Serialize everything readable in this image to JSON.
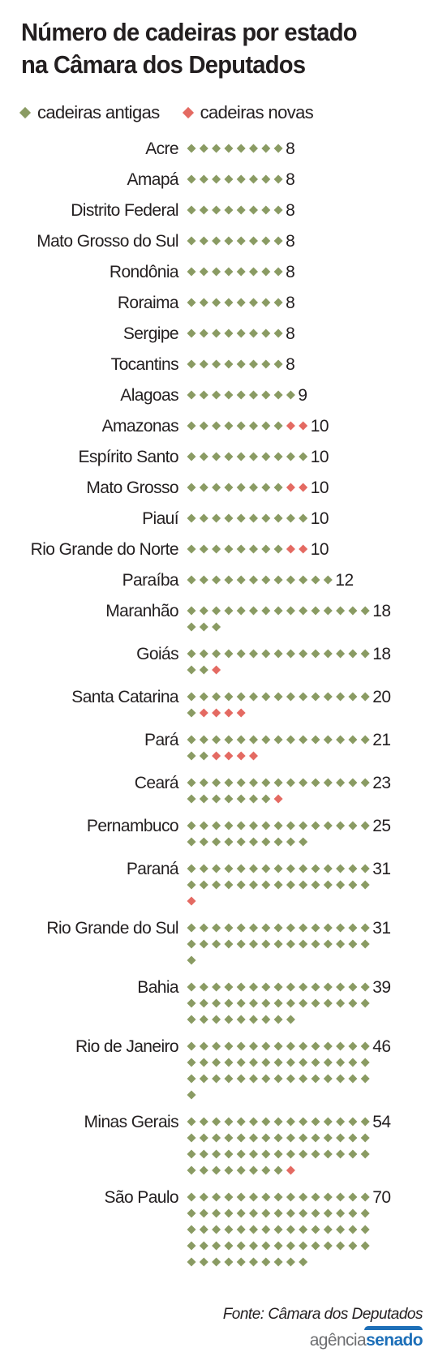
{
  "title_line1": "Número de cadeiras por estado",
  "title_line2": "na Câmara dos Deputados",
  "legend": {
    "old_label": "cadeiras antigas",
    "new_label": "cadeiras novas"
  },
  "colors": {
    "old": "#8a9b63",
    "new": "#e46a62",
    "text": "#231f20"
  },
  "source": "Fonte: Câmara dos Deputados",
  "logo": {
    "part1": "agência",
    "part2": "senado"
  },
  "chart_data": {
    "type": "dot-matrix",
    "title": "Número de cadeiras por estado na Câmara dos Deputados",
    "legend": [
      "cadeiras antigas",
      "cadeiras novas"
    ],
    "dots_per_row": 15,
    "rows": [
      {
        "state": "Acre",
        "total": 8,
        "old": 8,
        "new": 0
      },
      {
        "state": "Amapá",
        "total": 8,
        "old": 8,
        "new": 0
      },
      {
        "state": "Distrito Federal",
        "total": 8,
        "old": 8,
        "new": 0
      },
      {
        "state": "Mato Grosso do Sul",
        "total": 8,
        "old": 8,
        "new": 0
      },
      {
        "state": "Rondônia",
        "total": 8,
        "old": 8,
        "new": 0
      },
      {
        "state": "Roraima",
        "total": 8,
        "old": 8,
        "new": 0
      },
      {
        "state": "Sergipe",
        "total": 8,
        "old": 8,
        "new": 0
      },
      {
        "state": "Tocantins",
        "total": 8,
        "old": 8,
        "new": 0
      },
      {
        "state": "Alagoas",
        "total": 9,
        "old": 9,
        "new": 0
      },
      {
        "state": "Amazonas",
        "total": 10,
        "old": 8,
        "new": 2
      },
      {
        "state": "Espírito Santo",
        "total": 10,
        "old": 10,
        "new": 0
      },
      {
        "state": "Mato Grosso",
        "total": 10,
        "old": 8,
        "new": 2
      },
      {
        "state": "Piauí",
        "total": 10,
        "old": 10,
        "new": 0
      },
      {
        "state": "Rio Grande do Norte",
        "total": 10,
        "old": 8,
        "new": 2
      },
      {
        "state": "Paraíba",
        "total": 12,
        "old": 12,
        "new": 0
      },
      {
        "state": "Maranhão",
        "total": 18,
        "old": 18,
        "new": 0
      },
      {
        "state": "Goiás",
        "total": 18,
        "old": 17,
        "new": 1
      },
      {
        "state": "Santa Catarina",
        "total": 20,
        "old": 16,
        "new": 4
      },
      {
        "state": "Pará",
        "total": 21,
        "old": 17,
        "new": 4
      },
      {
        "state": "Ceará",
        "total": 23,
        "old": 22,
        "new": 1
      },
      {
        "state": "Pernambuco",
        "total": 25,
        "old": 25,
        "new": 0
      },
      {
        "state": "Paraná",
        "total": 31,
        "old": 30,
        "new": 1
      },
      {
        "state": "Rio Grande do Sul",
        "total": 31,
        "old": 31,
        "new": 0
      },
      {
        "state": "Bahia",
        "total": 39,
        "old": 39,
        "new": 0
      },
      {
        "state": "Rio de Janeiro",
        "total": 46,
        "old": 46,
        "new": 0
      },
      {
        "state": "Minas Gerais",
        "total": 54,
        "old": 53,
        "new": 1
      },
      {
        "state": "São Paulo",
        "total": 70,
        "old": 70,
        "new": 0
      }
    ]
  }
}
